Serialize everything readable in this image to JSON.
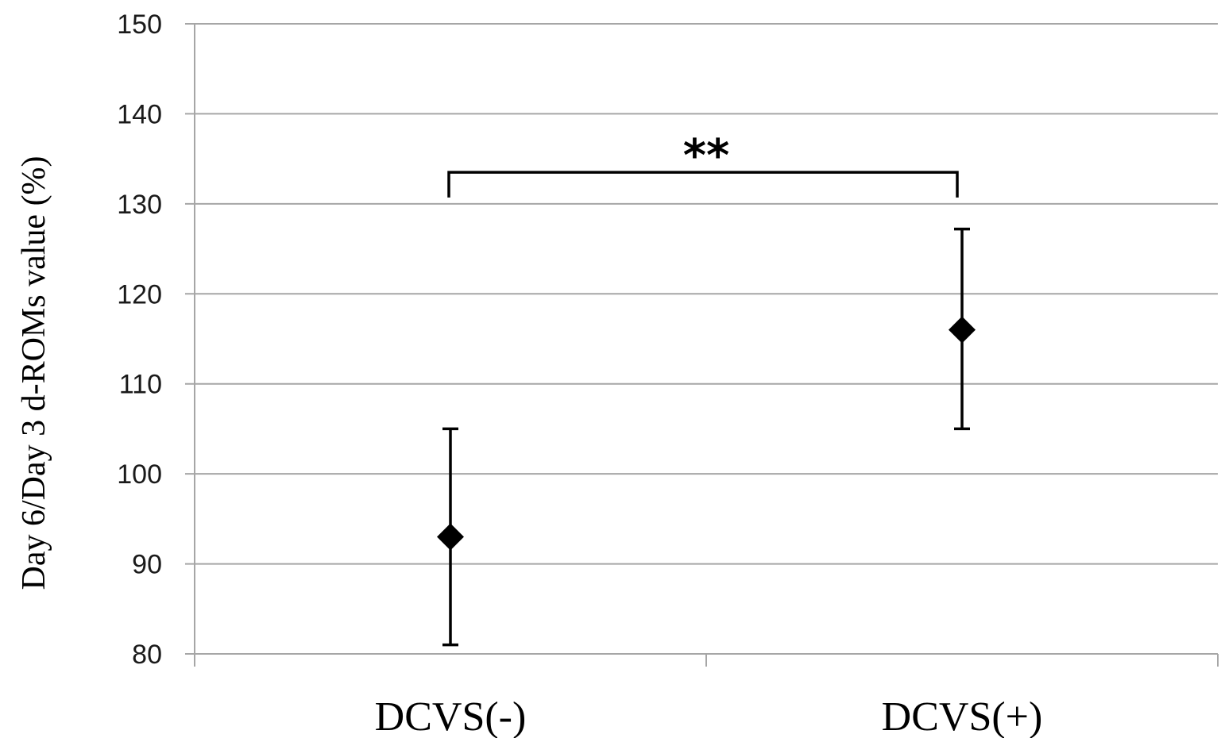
{
  "chart_data": {
    "type": "scatter",
    "categories": [
      "DCVS(-)",
      "DCVS(+)"
    ],
    "series": [
      {
        "values": [
          93,
          116
        ],
        "error_low": [
          81,
          105
        ],
        "error_high": [
          105,
          127.2
        ],
        "color": "#000000",
        "marker": "diamond"
      }
    ],
    "ylabel": "Day 6/Day 3 d-ROMs value (%)",
    "xlabel": "",
    "ylim": [
      80,
      150
    ],
    "yticks": [
      80,
      90,
      100,
      110,
      120,
      130,
      140,
      150
    ],
    "grid": true,
    "gridColor": "#a6a6a6",
    "annotations": [
      {
        "type": "significance-bracket",
        "from": "DCVS(-)",
        "to": "DCVS(+)",
        "y": 133.5,
        "drop_to": 130.7,
        "text": "**"
      }
    ]
  }
}
